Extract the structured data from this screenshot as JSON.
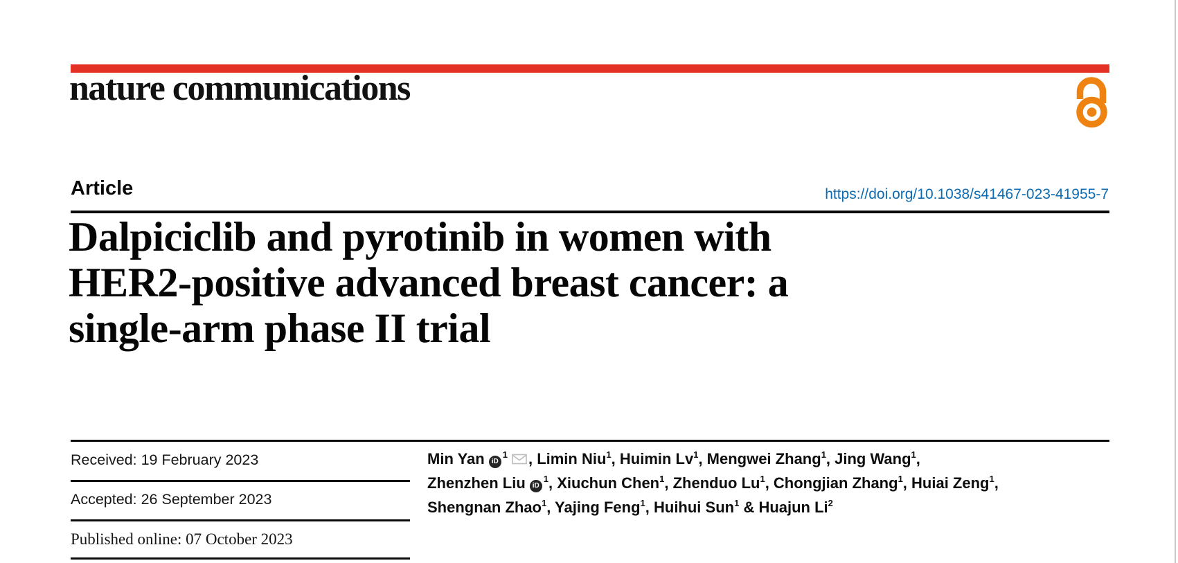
{
  "colors": {
    "masthead_red": "#e43125",
    "open_access_orange": "#ee8312",
    "link_blue": "#0c6cb3",
    "rule_black": "#0a0a0a",
    "envelope_gray": "#bdbdbd"
  },
  "masthead": {
    "journal_name": "nature communications",
    "open_access_icon": "open-access-padlock"
  },
  "article": {
    "kicker": "Article",
    "doi": "https://doi.org/10.1038/s41467-023-41955-7",
    "title_lines": [
      "Dalpiciclib and pyrotinib in women with",
      "HER2-positive advanced breast cancer: a",
      "single-arm phase II trial"
    ]
  },
  "dates": {
    "rows": [
      {
        "label": "Received",
        "value": "19 February 2023",
        "text": "Received: 19 February 2023"
      },
      {
        "label": "Accepted",
        "value": "26 September 2023",
        "text": "Accepted: 26 September 2023"
      },
      {
        "label": "Published online",
        "value": "07 October 2023",
        "text": "Published online: 07 October 2023"
      }
    ]
  },
  "icons": {
    "orcid_label": "iD",
    "email_icon": "envelope",
    "orcid_icon": "orcid-id-badge"
  },
  "authors": {
    "lines": [
      [
        {
          "t": "text",
          "v": "Min Yan"
        },
        {
          "t": "orcid"
        },
        {
          "t": "sup",
          "v": "1"
        },
        {
          "t": "email"
        },
        {
          "t": "text",
          "v": ", Limin Niu"
        },
        {
          "t": "sup",
          "v": "1"
        },
        {
          "t": "text",
          "v": ", Huimin Lv"
        },
        {
          "t": "sup",
          "v": "1"
        },
        {
          "t": "text",
          "v": ", Mengwei Zhang"
        },
        {
          "t": "sup",
          "v": "1"
        },
        {
          "t": "text",
          "v": ", Jing Wang"
        },
        {
          "t": "sup",
          "v": "1"
        },
        {
          "t": "text",
          "v": ","
        }
      ],
      [
        {
          "t": "text",
          "v": "Zhenzhen Liu"
        },
        {
          "t": "orcid"
        },
        {
          "t": "sup",
          "v": "1"
        },
        {
          "t": "text",
          "v": ", Xiuchun Chen"
        },
        {
          "t": "sup",
          "v": "1"
        },
        {
          "t": "text",
          "v": ", Zhenduo Lu"
        },
        {
          "t": "sup",
          "v": "1"
        },
        {
          "t": "text",
          "v": ", Chongjian Zhang"
        },
        {
          "t": "sup",
          "v": "1"
        },
        {
          "t": "text",
          "v": ", Huiai Zeng"
        },
        {
          "t": "sup",
          "v": "1"
        },
        {
          "t": "text",
          "v": ","
        }
      ],
      [
        {
          "t": "text",
          "v": "Shengnan Zhao"
        },
        {
          "t": "sup",
          "v": "1"
        },
        {
          "t": "text",
          "v": ", Yajing Feng"
        },
        {
          "t": "sup",
          "v": "1"
        },
        {
          "t": "text",
          "v": ", Huihui Sun"
        },
        {
          "t": "sup",
          "v": "1"
        },
        {
          "t": "text",
          "v": " & Huajun Li"
        },
        {
          "t": "sup",
          "v": "2"
        }
      ]
    ]
  }
}
